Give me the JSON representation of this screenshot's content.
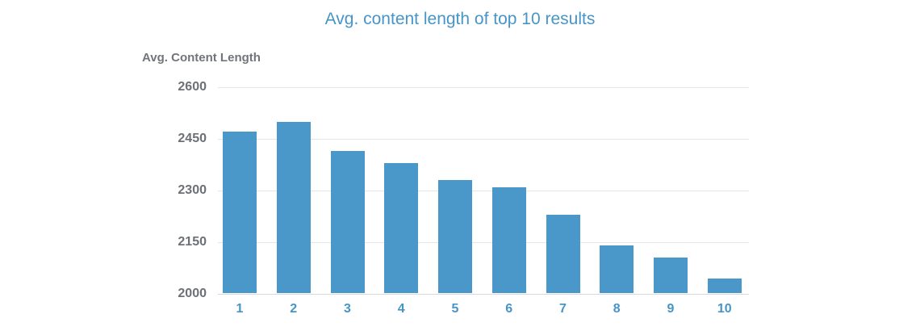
{
  "title": "Avg. content length of top 10 results",
  "colors": {
    "bar": "#4a98c9",
    "title_text": "#4795c7",
    "x_tick_text": "#4795c7",
    "y_tick_text": "#6d7076",
    "y_axis_title_text": "#71757b",
    "gridline": "#e5e5e7",
    "baseline": "#d8d8db",
    "background": "#ffffff"
  },
  "chart_data": {
    "type": "bar",
    "title": "Avg. content length of top 10 results",
    "xlabel": "",
    "ylabel": "Avg. Content Length",
    "categories": [
      "1",
      "2",
      "3",
      "4",
      "5",
      "6",
      "7",
      "8",
      "9",
      "10"
    ],
    "values": [
      2470,
      2500,
      2415,
      2380,
      2330,
      2310,
      2230,
      2140,
      2105,
      2045
    ],
    "ylim": [
      2000,
      2600
    ],
    "yticks": [
      2000,
      2150,
      2300,
      2450,
      2600
    ],
    "grid": true,
    "legend": false
  }
}
